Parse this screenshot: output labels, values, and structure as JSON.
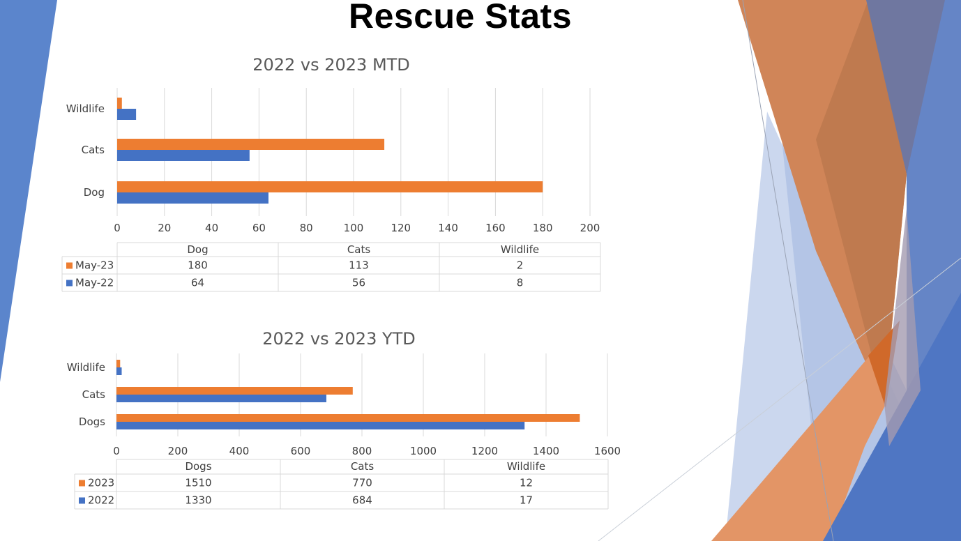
{
  "slide": {
    "title": "Rescue Stats"
  },
  "colors": {
    "series_orange": "#ED7D31",
    "series_blue": "#4472C4",
    "grid": "#D9D9D9",
    "text": "#404040",
    "title_text": "#595959"
  },
  "chart_data": [
    {
      "type": "bar",
      "orientation": "horizontal",
      "title": "2022 vs 2023 MTD",
      "categories": [
        "Dog",
        "Cats",
        "Wildlife"
      ],
      "series": [
        {
          "name": "May-23",
          "color": "#ED7D31",
          "values": [
            180,
            113,
            2
          ]
        },
        {
          "name": "May-22",
          "color": "#4472C4",
          "values": [
            64,
            56,
            8
          ]
        }
      ],
      "xlabel": "",
      "ylabel": "",
      "xlim": [
        0,
        200
      ],
      "xticks": [
        0,
        20,
        40,
        60,
        80,
        100,
        120,
        140,
        160,
        180,
        200
      ],
      "grid": true,
      "legend": "data-table-below"
    },
    {
      "type": "bar",
      "orientation": "horizontal",
      "title": "2022 vs 2023 YTD",
      "categories": [
        "Dogs",
        "Cats",
        "Wildlife"
      ],
      "series": [
        {
          "name": "2023",
          "color": "#ED7D31",
          "values": [
            1510,
            770,
            12
          ]
        },
        {
          "name": "2022",
          "color": "#4472C4",
          "values": [
            1330,
            684,
            17
          ]
        }
      ],
      "xlabel": "",
      "ylabel": "",
      "xlim": [
        0,
        1600
      ],
      "xticks": [
        0,
        200,
        400,
        600,
        800,
        1000,
        1200,
        1400,
        1600
      ],
      "grid": true,
      "legend": "data-table-below"
    }
  ]
}
